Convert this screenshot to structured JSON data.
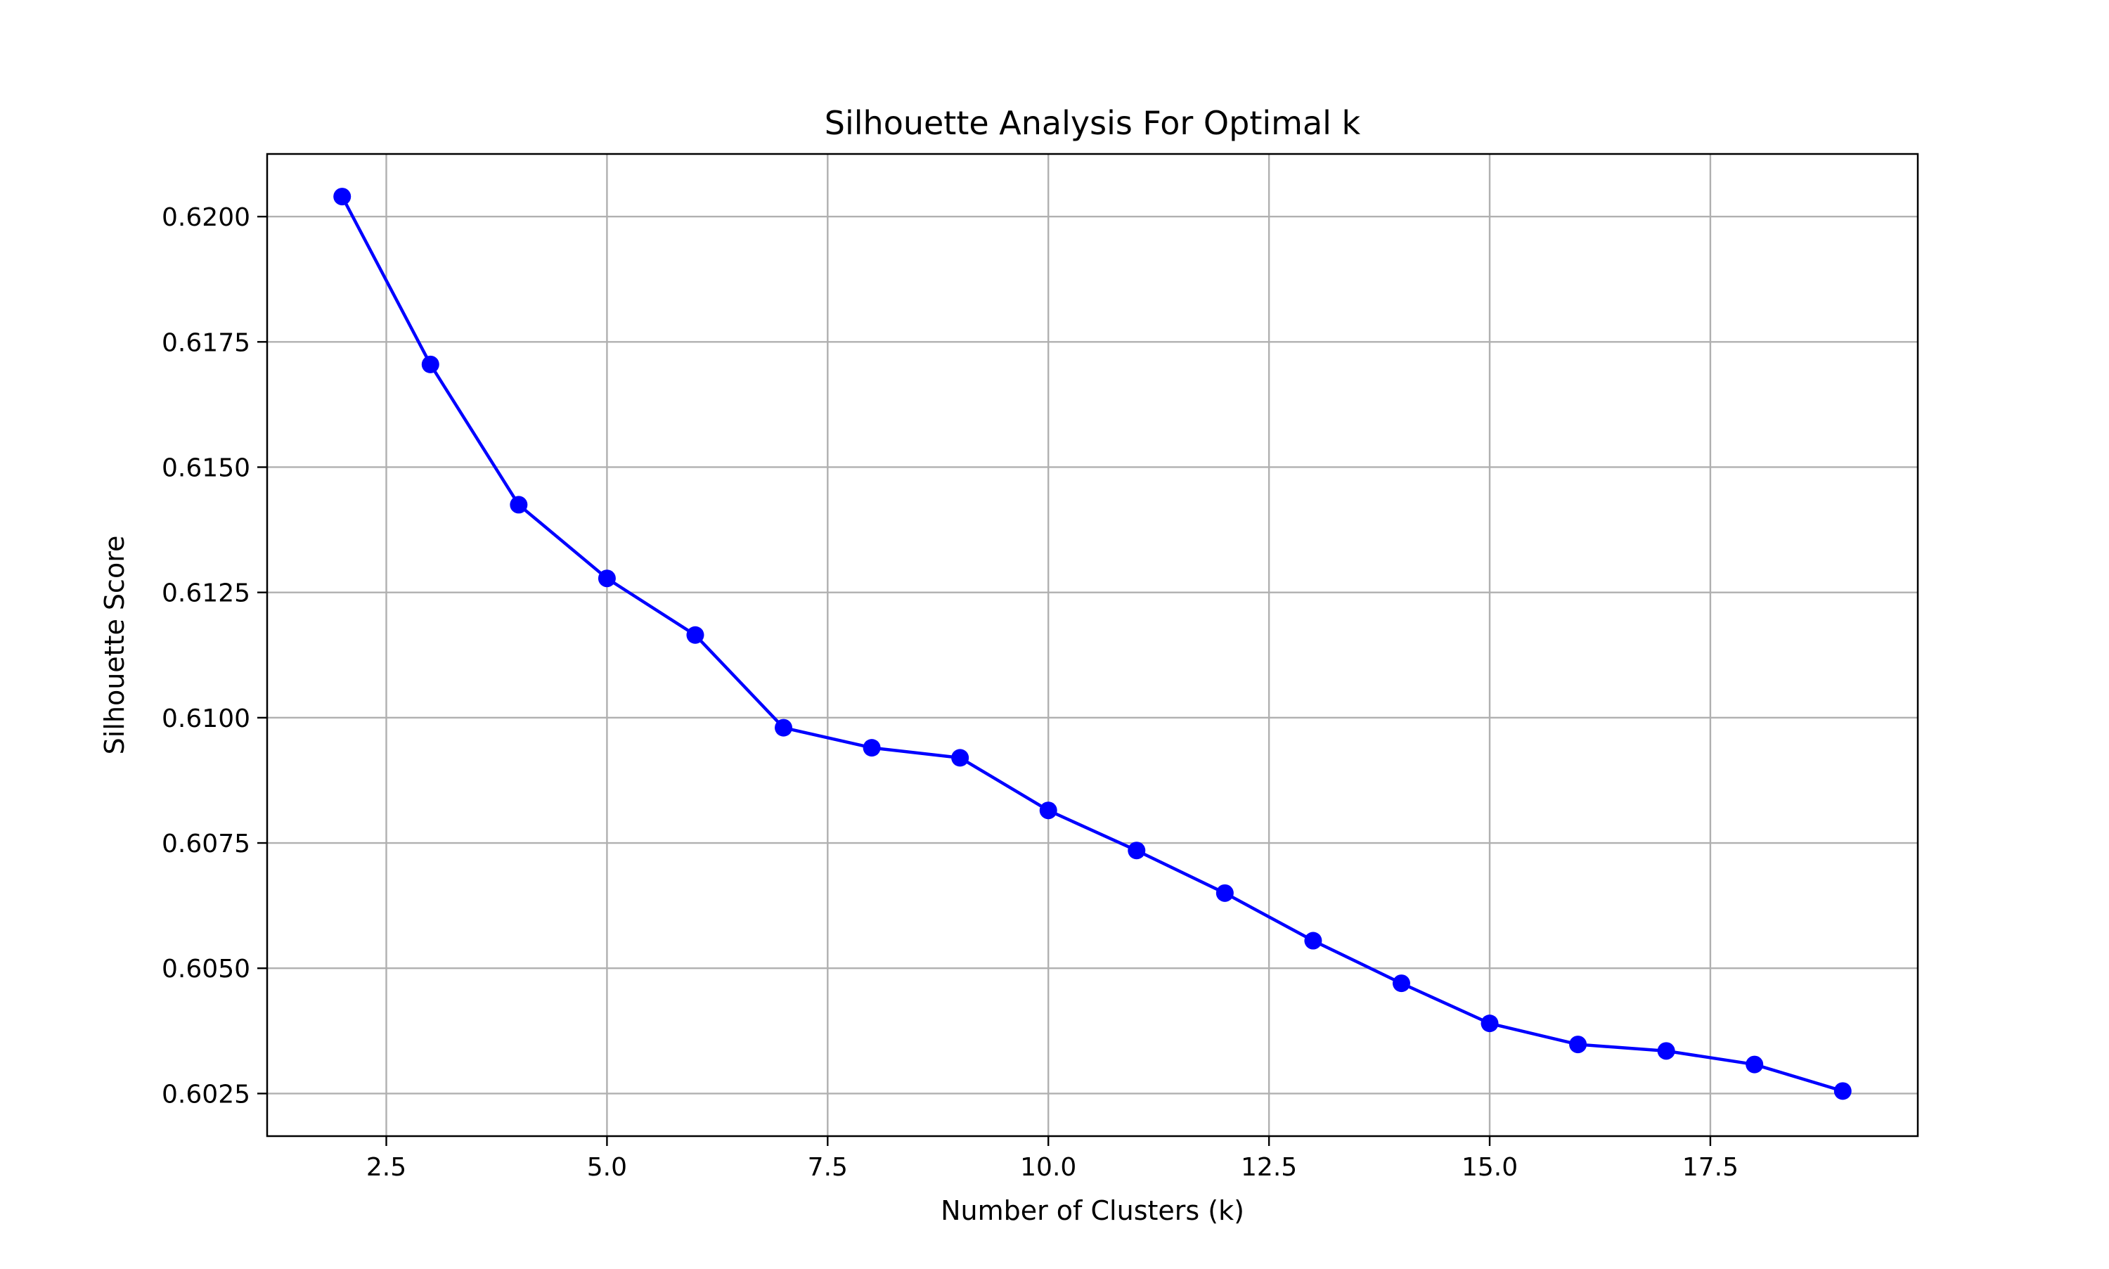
{
  "chart_data": {
    "type": "line",
    "title": "Silhouette Analysis For Optimal k",
    "xlabel": "Number of Clusters (k)",
    "ylabel": "Silhouette Score",
    "xlim": [
      1.15,
      19.85
    ],
    "ylim": [
      0.60165,
      0.62125
    ],
    "xticks": [
      2.5,
      5.0,
      7.5,
      10.0,
      12.5,
      15.0,
      17.5
    ],
    "xtick_labels": [
      "2.5",
      "5.0",
      "7.5",
      "10.0",
      "12.5",
      "15.0",
      "17.5"
    ],
    "yticks": [
      0.6025,
      0.605,
      0.6075,
      0.61,
      0.6125,
      0.615,
      0.6175,
      0.62
    ],
    "ytick_labels": [
      "0.6025",
      "0.6050",
      "0.6075",
      "0.6100",
      "0.6125",
      "0.6150",
      "0.6175",
      "0.6200"
    ],
    "grid": true,
    "series": [
      {
        "color": "#0000ff",
        "marker": "circle",
        "x": [
          2,
          3,
          4,
          5,
          6,
          7,
          8,
          9,
          10,
          11,
          12,
          13,
          14,
          15,
          16,
          17,
          18,
          19
        ],
        "y": [
          0.6204,
          0.61705,
          0.61425,
          0.61278,
          0.61165,
          0.6098,
          0.6094,
          0.6092,
          0.60815,
          0.60735,
          0.6065,
          0.60555,
          0.6047,
          0.6039,
          0.60348,
          0.60335,
          0.60308,
          0.60255
        ]
      }
    ]
  }
}
